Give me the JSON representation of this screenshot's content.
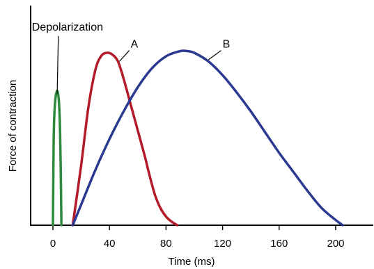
{
  "chart_data": {
    "type": "line",
    "title": "",
    "xlabel": "Time (ms)",
    "ylabel": "Force of contraction",
    "xlim": [
      -15,
      230
    ],
    "ylim": [
      0,
      1.05
    ],
    "x_ticks": [
      0,
      40,
      80,
      120,
      160,
      200
    ],
    "x_tick_labels": [
      "0",
      "40",
      "80",
      "120",
      "160",
      "200"
    ],
    "y_ticks": [],
    "grid": false,
    "legend": "none",
    "series": [
      {
        "name": "",
        "color": "#2e8b3e",
        "x": [
          0,
          0.5,
          1,
          1.5,
          2,
          2.5,
          3,
          3.5,
          4,
          4.5,
          5,
          5.5,
          6
        ],
        "y": [
          0,
          0.48,
          0.64,
          0.71,
          0.75,
          0.77,
          0.78,
          0.77,
          0.74,
          0.68,
          0.56,
          0.34,
          0
        ]
      },
      {
        "name": "A",
        "color": "#b31b2a",
        "x": [
          14,
          20,
          25,
          30,
          34,
          38,
          42,
          46,
          50,
          55,
          60,
          65,
          68,
          72,
          76,
          80,
          84,
          88
        ],
        "y": [
          0,
          0.35,
          0.68,
          0.9,
          0.98,
          1.0,
          0.99,
          0.95,
          0.85,
          0.7,
          0.55,
          0.4,
          0.3,
          0.18,
          0.1,
          0.05,
          0.02,
          0
        ]
      },
      {
        "name": "B",
        "color": "#2b3990",
        "x": [
          14,
          20,
          30,
          40,
          50,
          60,
          70,
          80,
          90,
          95,
          100,
          110,
          120,
          130,
          140,
          150,
          160,
          170,
          180,
          190,
          200,
          205
        ],
        "y": [
          0,
          0.12,
          0.32,
          0.5,
          0.66,
          0.8,
          0.91,
          0.98,
          1.01,
          1.01,
          1.0,
          0.95,
          0.87,
          0.77,
          0.66,
          0.54,
          0.42,
          0.31,
          0.2,
          0.1,
          0.03,
          0
        ]
      }
    ],
    "annotations": [
      {
        "text": "Depolarization",
        "target": [
          3,
          0.76
        ],
        "label_at": [
          -8,
          1.13
        ]
      },
      {
        "text": "A",
        "target": [
          47,
          0.95
        ],
        "label_at": [
          55,
          1.03
        ]
      },
      {
        "text": "B",
        "target": [
          110,
          0.96
        ],
        "label_at": [
          120,
          1.03
        ]
      }
    ]
  }
}
